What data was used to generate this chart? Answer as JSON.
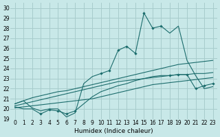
{
  "xlabel": "Humidex (Indice chaleur)",
  "ylabel": "",
  "background_color": "#c8e8e8",
  "grid_color": "#a8cccc",
  "line_color": "#1a6b6b",
  "xlim": [
    -0.5,
    23.5
  ],
  "ylim": [
    19,
    30.5
  ],
  "xticks": [
    0,
    1,
    2,
    3,
    4,
    5,
    6,
    7,
    8,
    9,
    10,
    11,
    12,
    13,
    14,
    15,
    16,
    17,
    18,
    19,
    20,
    21,
    22,
    23
  ],
  "yticks": [
    19,
    20,
    21,
    22,
    23,
    24,
    25,
    26,
    27,
    28,
    29,
    30
  ],
  "series": [
    [
      20.5,
      20.8,
      21.1,
      21.3,
      21.5,
      21.7,
      21.8,
      22.0,
      22.2,
      22.4,
      22.6,
      22.8,
      23.0,
      23.2,
      23.4,
      23.6,
      23.8,
      24.0,
      24.2,
      24.4,
      24.5,
      24.6,
      24.7,
      24.8
    ],
    [
      20.3,
      20.5,
      20.7,
      20.9,
      21.1,
      21.3,
      21.5,
      21.7,
      21.9,
      22.1,
      22.3,
      22.5,
      22.7,
      22.8,
      22.9,
      23.0,
      23.1,
      23.2,
      23.3,
      23.4,
      23.4,
      23.5,
      23.5,
      23.6
    ],
    [
      20.1,
      20.2,
      20.3,
      20.4,
      20.5,
      20.6,
      20.7,
      20.8,
      20.9,
      21.0,
      21.2,
      21.4,
      21.6,
      21.8,
      22.0,
      22.2,
      22.4,
      22.5,
      22.6,
      22.7,
      22.8,
      22.9,
      23.0,
      23.1
    ],
    [
      20.2,
      20.0,
      20.0,
      19.5,
      19.9,
      19.8,
      19.5,
      19.8,
      20.5,
      21.2,
      21.7,
      22.0,
      22.3,
      22.5,
      22.8,
      23.0,
      23.2,
      23.3,
      23.3,
      23.4,
      23.4,
      22.0,
      22.3,
      22.5
    ],
    [
      20.5,
      20.8,
      20.1,
      19.8,
      20.0,
      20.0,
      19.2,
      19.6,
      22.5,
      23.2,
      23.5,
      23.8,
      25.8,
      26.2,
      25.5,
      29.5,
      28.0,
      28.2,
      27.5,
      28.2,
      24.8,
      23.3,
      22.0,
      22.2
    ]
  ],
  "markers_x": [
    [],
    [],
    [],
    [
      3,
      4,
      5,
      6,
      7,
      18,
      19,
      20,
      21,
      22,
      23
    ],
    [
      10,
      11,
      12,
      13,
      14,
      15,
      16,
      17
    ]
  ]
}
